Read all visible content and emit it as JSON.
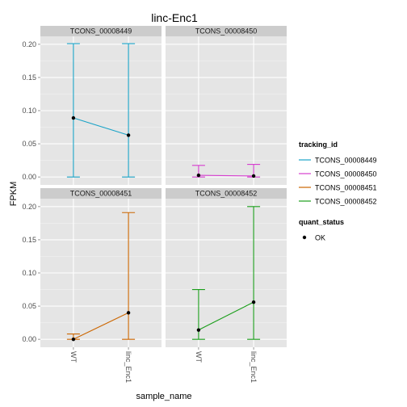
{
  "chart_data": {
    "type": "line",
    "title": "linc-Enc1",
    "xlabel": "sample_name",
    "ylabel": "FPKM",
    "categories": [
      "WT",
      "linc_Enc1"
    ],
    "ylim": [
      -0.012,
      0.212
    ],
    "yticks": [
      "0.00",
      "0.05",
      "0.10",
      "0.15",
      "0.20"
    ],
    "ytick_values": [
      0.0,
      0.05,
      0.1,
      0.15,
      0.2
    ],
    "grid": true,
    "legend": "right",
    "facets": [
      {
        "name": "TCONS_00008449",
        "color": "#1aa3c7",
        "points": [
          {
            "x": "WT",
            "y": 0.089,
            "lo": 0.0,
            "hi": 0.201
          },
          {
            "x": "linc_Enc1",
            "y": 0.063,
            "lo": 0.0,
            "hi": 0.201
          }
        ]
      },
      {
        "name": "TCONS_00008450",
        "color": "#d63fcf",
        "points": [
          {
            "x": "WT",
            "y": 0.0025,
            "lo": 0.0,
            "hi": 0.0175
          },
          {
            "x": "linc_Enc1",
            "y": 0.0015,
            "lo": 0.0,
            "hi": 0.019
          }
        ]
      },
      {
        "name": "TCONS_00008451",
        "color": "#cc6600",
        "points": [
          {
            "x": "WT",
            "y": 0.0,
            "lo": 0.0,
            "hi": 0.008
          },
          {
            "x": "linc_Enc1",
            "y": 0.04,
            "lo": 0.0,
            "hi": 0.191
          }
        ]
      },
      {
        "name": "TCONS_00008452",
        "color": "#1a9e1a",
        "points": [
          {
            "x": "WT",
            "y": 0.014,
            "lo": 0.0,
            "hi": 0.075
          },
          {
            "x": "linc_Enc1",
            "y": 0.056,
            "lo": 0.0,
            "hi": 0.2
          }
        ]
      }
    ],
    "legend_tracking": {
      "title": "tracking_id",
      "items": [
        "TCONS_00008449",
        "TCONS_00008450",
        "TCONS_00008451",
        "TCONS_00008452"
      ]
    },
    "legend_quant": {
      "title": "quant_status",
      "items": [
        "OK"
      ]
    },
    "colors": {
      "panel_bg": "#e5e5e5",
      "strip_bg": "#cccccc",
      "grid_major": "#ffffff",
      "grid_minor": "#f2f2f2",
      "point": "#000000"
    }
  }
}
